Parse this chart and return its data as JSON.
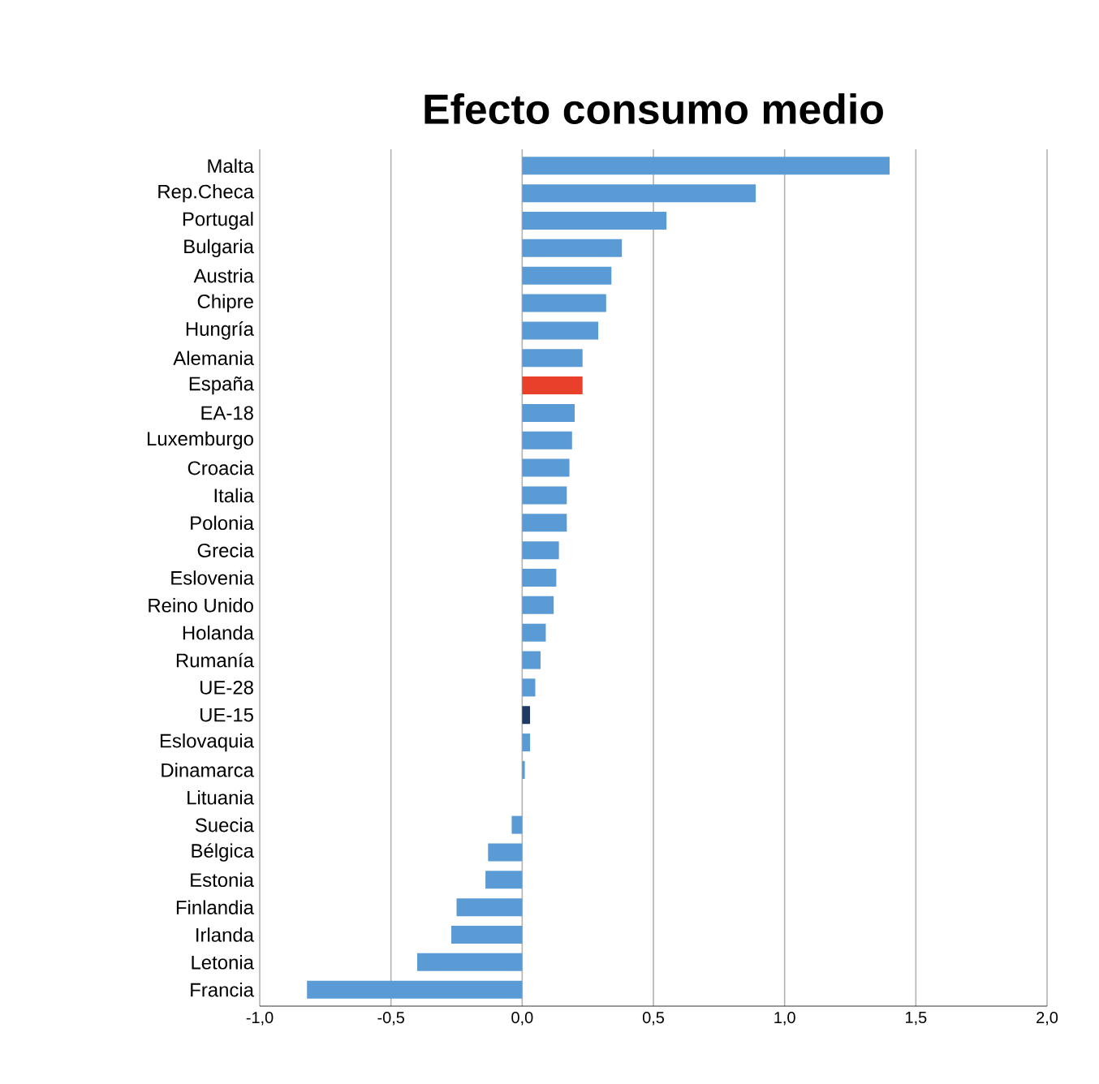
{
  "chart_data": {
    "type": "bar",
    "orientation": "horizontal",
    "title": "Efecto consumo medio",
    "categories": [
      "Malta",
      "Rep.Checa",
      "Portugal",
      "Bulgaria",
      "Austria",
      "Chipre",
      "Hungría",
      "Alemania",
      "España",
      "EA-18",
      "Luxemburgo",
      "Croacia",
      "Italia",
      "Polonia",
      "Grecia",
      "Eslovenia",
      "Reino Unido",
      "Holanda",
      "Rumanía",
      "UE-28",
      "UE-15",
      "Eslovaquia",
      "Dinamarca",
      "Lituania",
      "Suecia",
      "Bélgica",
      "Estonia",
      "Finlandia",
      "Irlanda",
      "Letonia",
      "Francia"
    ],
    "values": [
      1.4,
      0.89,
      0.55,
      0.38,
      0.34,
      0.32,
      0.29,
      0.23,
      0.23,
      0.2,
      0.19,
      0.18,
      0.17,
      0.17,
      0.14,
      0.13,
      0.12,
      0.09,
      0.07,
      0.05,
      0.03,
      0.03,
      0.01,
      0.0,
      -0.04,
      -0.13,
      -0.14,
      -0.25,
      -0.27,
      -0.4,
      -0.82
    ],
    "colors": [
      "#5b9bd5",
      "#5b9bd5",
      "#5b9bd5",
      "#5b9bd5",
      "#5b9bd5",
      "#5b9bd5",
      "#5b9bd5",
      "#5b9bd5",
      "#e8402a",
      "#5b9bd5",
      "#5b9bd5",
      "#5b9bd5",
      "#5b9bd5",
      "#5b9bd5",
      "#5b9bd5",
      "#5b9bd5",
      "#5b9bd5",
      "#5b9bd5",
      "#5b9bd5",
      "#5b9bd5",
      "#1f3864",
      "#5b9bd5",
      "#5b9bd5",
      "#5b9bd5",
      "#5b9bd5",
      "#5b9bd5",
      "#5b9bd5",
      "#5b9bd5",
      "#5b9bd5",
      "#5b9bd5",
      "#5b9bd5"
    ],
    "xlim": [
      -1,
      2
    ],
    "xticks": [
      {
        "value": -1,
        "label": "-1,0"
      },
      {
        "value": -0.5,
        "label": "-0,5"
      },
      {
        "value": 0,
        "label": "0,0"
      },
      {
        "value": 0.5,
        "label": "0,5"
      },
      {
        "value": 1,
        "label": "1,0"
      },
      {
        "value": 1.5,
        "label": "1,5"
      },
      {
        "value": 2,
        "label": "2,0"
      }
    ],
    "grid": "x"
  }
}
